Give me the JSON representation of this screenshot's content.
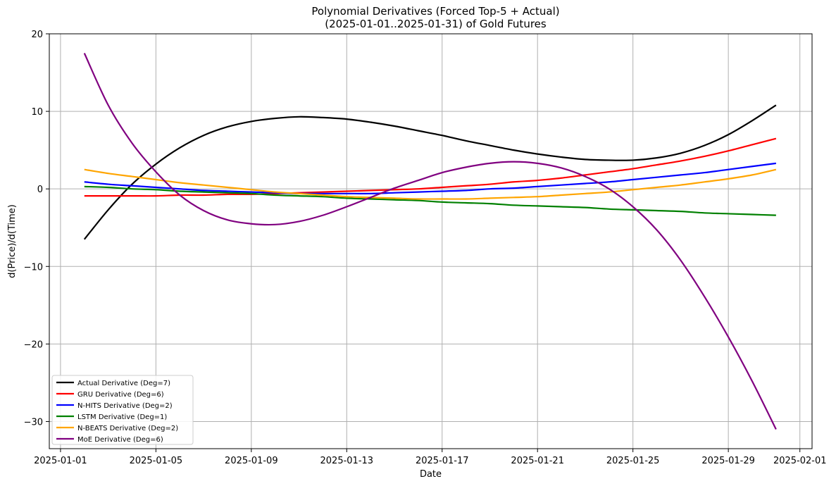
{
  "chart_data": {
    "type": "line",
    "title": "Polynomial Derivatives (Forced Top-5 + Actual)",
    "subtitle": "(2025-01-01..2025-01-31) of Gold Futures",
    "xlabel": "Date",
    "ylabel": "d(Price)/d(Time)",
    "xlim": [
      "2025-01-01",
      "2025-02-01"
    ],
    "ylim": [
      -33.5,
      20
    ],
    "x_ticks": [
      "2025-01-01",
      "2025-01-05",
      "2025-01-09",
      "2025-01-13",
      "2025-01-17",
      "2025-01-21",
      "2025-01-25",
      "2025-01-29",
      "2025-02-01"
    ],
    "y_ticks": [
      20,
      10,
      0,
      -10,
      -20,
      -30
    ],
    "y_tick_labels": [
      "20",
      "10",
      "0",
      "−10",
      "−20",
      "−30"
    ],
    "grid": true,
    "legend_position": "lower-left",
    "x": [
      "2025-01-02",
      "2025-01-03",
      "2025-01-04",
      "2025-01-05",
      "2025-01-06",
      "2025-01-07",
      "2025-01-08",
      "2025-01-09",
      "2025-01-10",
      "2025-01-11",
      "2025-01-12",
      "2025-01-13",
      "2025-01-14",
      "2025-01-15",
      "2025-01-16",
      "2025-01-17",
      "2025-01-18",
      "2025-01-19",
      "2025-01-20",
      "2025-01-21",
      "2025-01-22",
      "2025-01-23",
      "2025-01-24",
      "2025-01-25",
      "2025-01-26",
      "2025-01-27",
      "2025-01-28",
      "2025-01-29",
      "2025-01-30",
      "2025-01-31"
    ],
    "series": [
      {
        "name": "Actual Derivative (Deg=7)",
        "color": "#000000",
        "values": [
          -6.5,
          -2.7,
          0.6,
          3.2,
          5.3,
          6.9,
          8.0,
          8.7,
          9.1,
          9.3,
          9.2,
          9.0,
          8.6,
          8.1,
          7.5,
          6.9,
          6.2,
          5.6,
          5.0,
          4.5,
          4.1,
          3.8,
          3.7,
          3.7,
          4.0,
          4.6,
          5.6,
          7.0,
          8.8,
          10.8
        ]
      },
      {
        "name": "GRU Derivative (Deg=6)",
        "color": "#ff0000",
        "values": [
          -0.9,
          -0.9,
          -0.9,
          -0.9,
          -0.8,
          -0.8,
          -0.7,
          -0.7,
          -0.6,
          -0.5,
          -0.4,
          -0.3,
          -0.2,
          -0.1,
          0.0,
          0.2,
          0.4,
          0.6,
          0.9,
          1.1,
          1.4,
          1.8,
          2.2,
          2.6,
          3.1,
          3.6,
          4.2,
          4.9,
          5.7,
          6.5
        ]
      },
      {
        "name": "N-HITS Derivative (Deg=2)",
        "color": "#0000ff",
        "values": [
          0.9,
          0.6,
          0.4,
          0.2,
          0.0,
          -0.2,
          -0.3,
          -0.4,
          -0.5,
          -0.6,
          -0.6,
          -0.6,
          -0.6,
          -0.5,
          -0.4,
          -0.3,
          -0.2,
          0.0,
          0.1,
          0.3,
          0.5,
          0.7,
          0.9,
          1.2,
          1.5,
          1.8,
          2.1,
          2.5,
          2.9,
          3.3
        ]
      },
      {
        "name": "LSTM Derivative (Deg=1)",
        "color": "#008000",
        "values": [
          0.3,
          0.2,
          0.0,
          -0.1,
          -0.3,
          -0.4,
          -0.5,
          -0.6,
          -0.8,
          -0.9,
          -1.0,
          -1.2,
          -1.3,
          -1.4,
          -1.5,
          -1.7,
          -1.8,
          -1.9,
          -2.1,
          -2.2,
          -2.3,
          -2.4,
          -2.6,
          -2.7,
          -2.8,
          -2.9,
          -3.1,
          -3.2,
          -3.3,
          -3.4
        ]
      },
      {
        "name": "N-BEATS Derivative (Deg=2)",
        "color": "#ffa500",
        "values": [
          2.5,
          2.0,
          1.6,
          1.2,
          0.8,
          0.5,
          0.2,
          -0.1,
          -0.4,
          -0.6,
          -0.8,
          -1.0,
          -1.1,
          -1.2,
          -1.3,
          -1.3,
          -1.3,
          -1.2,
          -1.1,
          -1.0,
          -0.8,
          -0.6,
          -0.4,
          -0.1,
          0.2,
          0.5,
          0.9,
          1.3,
          1.8,
          2.5
        ]
      },
      {
        "name": "MoE Derivative (Deg=6)",
        "color": "#800080",
        "values": [
          17.5,
          10.8,
          5.9,
          2.2,
          -0.8,
          -2.8,
          -4.0,
          -4.5,
          -4.6,
          -4.2,
          -3.4,
          -2.3,
          -1.1,
          0.1,
          1.1,
          2.1,
          2.8,
          3.3,
          3.5,
          3.3,
          2.7,
          1.6,
          0.0,
          -2.3,
          -5.3,
          -9.2,
          -13.9,
          -19.1,
          -24.8,
          -31.0
        ]
      }
    ]
  }
}
